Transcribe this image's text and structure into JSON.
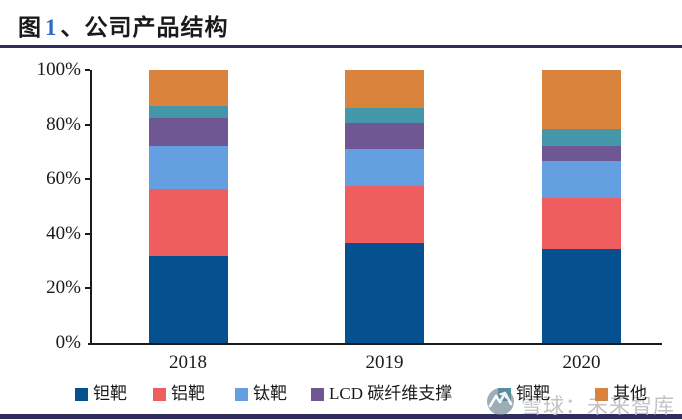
{
  "page": {
    "title_prefix": "图",
    "title_number": "1",
    "title_suffix": "、公司产品结构"
  },
  "watermark": {
    "logo": "snowball-icon",
    "text": "雪球：未来智库",
    "text_color": "#c3c3c3"
  },
  "colors": {
    "title_number_blue": "#2f6cc4",
    "rule_navy": "#2e2d5c",
    "axis": "#1a1a1a"
  },
  "chart_data": {
    "type": "bar",
    "stacked": true,
    "title": "公司产品结构",
    "categories": [
      "2018",
      "2019",
      "2020"
    ],
    "series": [
      {
        "name": "钽靶",
        "color": "#05508e",
        "values": [
          32.0,
          36.5,
          34.5
        ]
      },
      {
        "name": "铝靶",
        "color": "#ee5e5f",
        "values": [
          24.5,
          21.0,
          18.5
        ]
      },
      {
        "name": "钛靶",
        "color": "#64a0e1",
        "values": [
          15.5,
          13.5,
          13.5
        ]
      },
      {
        "name": "LCD 碳纤维支撑",
        "color": "#6f5794",
        "values": [
          10.5,
          9.5,
          5.5
        ]
      },
      {
        "name": "铜靶",
        "color": "#4496a9",
        "values": [
          4.5,
          5.5,
          6.5
        ]
      },
      {
        "name": "其他",
        "color": "#d9833d",
        "values": [
          13.0,
          14.0,
          21.5
        ]
      }
    ],
    "xlabel": "",
    "ylabel": "",
    "ylim": [
      0,
      100
    ],
    "yticks": [
      0,
      20,
      40,
      60,
      80,
      100
    ],
    "ytick_labels": [
      "0%",
      "20%",
      "40%",
      "60%",
      "80%",
      "100%"
    ],
    "grid": false,
    "legend_position": "bottom"
  }
}
